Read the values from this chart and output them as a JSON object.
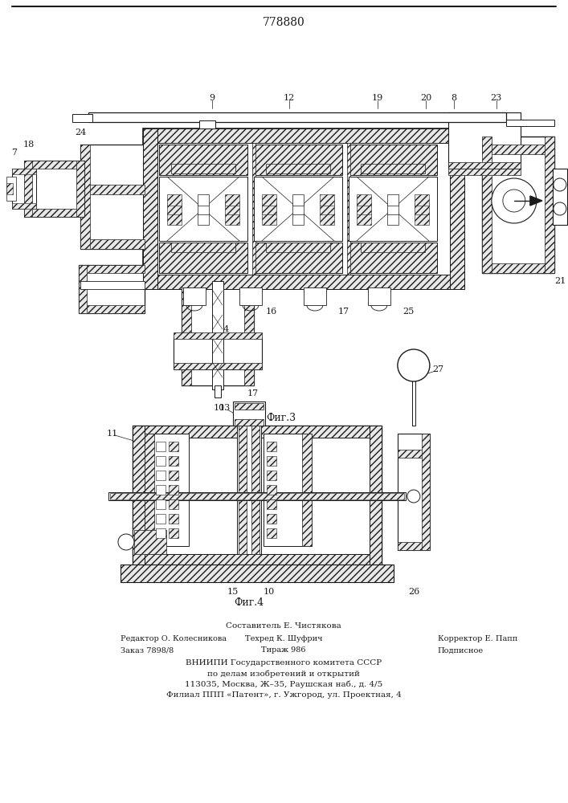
{
  "patent_number": "778880",
  "bg_color": "#ffffff",
  "line_color": "#1a1a1a",
  "hatch_color": "#1a1a1a",
  "fig3_caption": "Фиг.3",
  "fig4_caption": "Фиг.4",
  "footer_line1": "Составитель Е. Чистякова",
  "footer_line2_left": "Редактор О. Колесникова",
  "footer_line2_mid": "Техред К. Шуфрич",
  "footer_line2_right": "Корректор Е. Папп",
  "footer_line3_left": "Заказ 7898/8",
  "footer_line3_mid": "Тираж 986",
  "footer_line3_right": "Подписное",
  "footer_line4": "ВНИИПИ Государственного комитета СССР",
  "footer_line5": "по делам изобретений и открытий",
  "footer_line6": "113035, Москва, Ж–35, Раушская наб., д. 4/5",
  "footer_line7": "Филиал ППП «Патент», г. Ужгород, ул. Проектная, 4"
}
